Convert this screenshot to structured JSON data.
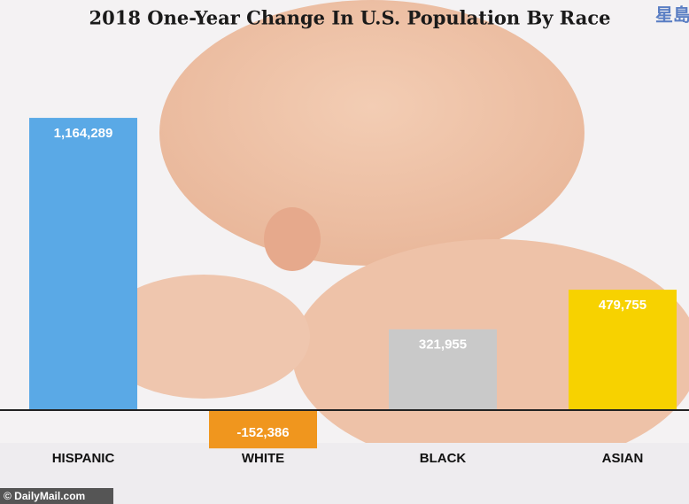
{
  "chart_data": {
    "type": "bar",
    "title": "2018 One-Year Change In U.S. Population By Race",
    "categories": [
      "HISPANIC",
      "WHITE",
      "BLACK",
      "ASIAN"
    ],
    "values": [
      1164289,
      -152386,
      321955,
      479755
    ],
    "value_labels": [
      "1,164,289",
      "-152,386",
      "321,955",
      "479,755"
    ],
    "colors": [
      "#5aa9e6",
      "#f0961e",
      "#c9c9c9",
      "#f7d200"
    ],
    "ylim": [
      -200000,
      1300000
    ],
    "source": "© DailyMail.com",
    "logo": "星島"
  }
}
